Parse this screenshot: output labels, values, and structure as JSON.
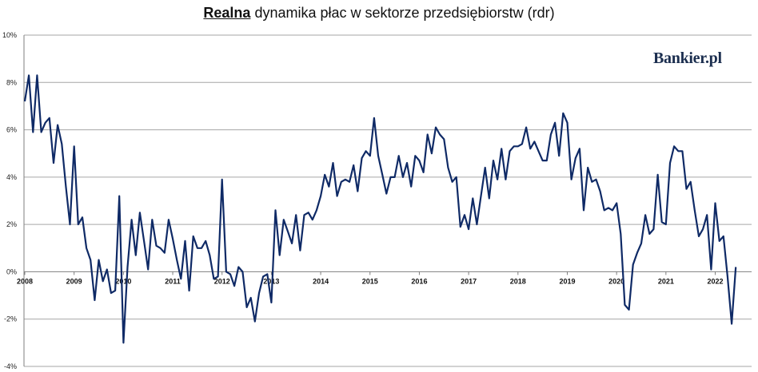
{
  "title": {
    "accent": "Realna",
    "rest": " dynamika płac w sektorze przedsiębiorstw (rdr)"
  },
  "logo": {
    "text": "Bankier.pl"
  },
  "colors": {
    "line": "#0f2a66",
    "grid": "#a6a6a6",
    "axis": "#7f7f7f"
  },
  "chart_data": {
    "type": "line",
    "title": "Realna dynamika płac w sektorze przedsiębiorstw (rdr)",
    "xlabel": "",
    "ylabel": "",
    "ylim": [
      -4,
      10
    ],
    "ytick_values": [
      -4,
      -2,
      0,
      2,
      4,
      6,
      8,
      10
    ],
    "ytick_labels": [
      "-4%",
      "-2%",
      "0%",
      "2%",
      "4%",
      "6%",
      "8%",
      "10%"
    ],
    "xtick_labels": [
      "2008",
      "2009",
      "2010",
      "2011",
      "2012",
      "2013",
      "2014",
      "2015",
      "2016",
      "2017",
      "2018",
      "2019",
      "2020",
      "2021",
      "2022"
    ],
    "grid": "horizontal",
    "x_start": "2008-01",
    "series": [
      {
        "values": [
          7.2,
          8.3,
          5.9,
          8.3,
          5.9,
          6.3,
          6.5,
          4.6,
          6.2,
          5.4,
          3.6,
          2.0,
          5.3,
          2.0,
          2.3,
          1.0,
          0.5,
          -1.2,
          0.5,
          -0.4,
          0.1,
          -0.9,
          -0.8,
          3.2,
          -3.0,
          0.2,
          2.2,
          0.7,
          2.5,
          1.3,
          0.1,
          2.2,
          1.1,
          1.0,
          0.8,
          2.2,
          1.4,
          0.5,
          -0.3,
          1.3,
          -0.8,
          1.5,
          1.0,
          1.0,
          1.3,
          0.7,
          -0.3,
          -0.2,
          3.9,
          0.0,
          -0.1,
          -0.6,
          0.2,
          0.0,
          -1.5,
          -1.1,
          -2.1,
          -0.9,
          -0.2,
          -0.1,
          -1.3,
          2.6,
          0.7,
          2.2,
          1.7,
          1.2,
          2.4,
          0.9,
          2.4,
          2.5,
          2.2,
          2.6,
          3.2,
          4.1,
          3.6,
          4.6,
          3.2,
          3.8,
          3.9,
          3.8,
          4.5,
          3.4,
          4.8,
          5.1,
          4.9,
          6.5,
          4.9,
          4.1,
          3.3,
          4.0,
          4.0,
          4.9,
          4.0,
          4.6,
          3.6,
          4.9,
          4.7,
          4.2,
          5.8,
          5.0,
          6.1,
          5.8,
          5.6,
          4.4,
          3.8,
          4.0,
          1.9,
          2.4,
          1.8,
          3.1,
          2.0,
          3.2,
          4.4,
          3.1,
          4.7,
          3.9,
          5.2,
          3.9,
          5.1,
          5.3,
          5.3,
          5.4,
          6.1,
          5.2,
          5.5,
          5.1,
          4.7,
          4.7,
          5.8,
          6.3,
          4.9,
          6.7,
          6.3,
          3.9,
          4.8,
          5.2,
          2.6,
          4.4,
          3.8,
          3.9,
          3.4,
          2.6,
          2.7,
          2.6,
          2.9,
          1.6,
          -1.4,
          -1.6,
          0.3,
          0.8,
          1.2,
          2.4,
          1.6,
          1.8,
          4.1,
          2.1,
          2.0,
          4.6,
          5.3,
          5.1,
          5.1,
          3.5,
          3.8,
          2.6,
          1.5,
          1.8,
          2.4,
          0.1,
          2.9,
          1.3,
          1.5,
          -0.2,
          -2.2,
          0.2
        ]
      }
    ]
  }
}
